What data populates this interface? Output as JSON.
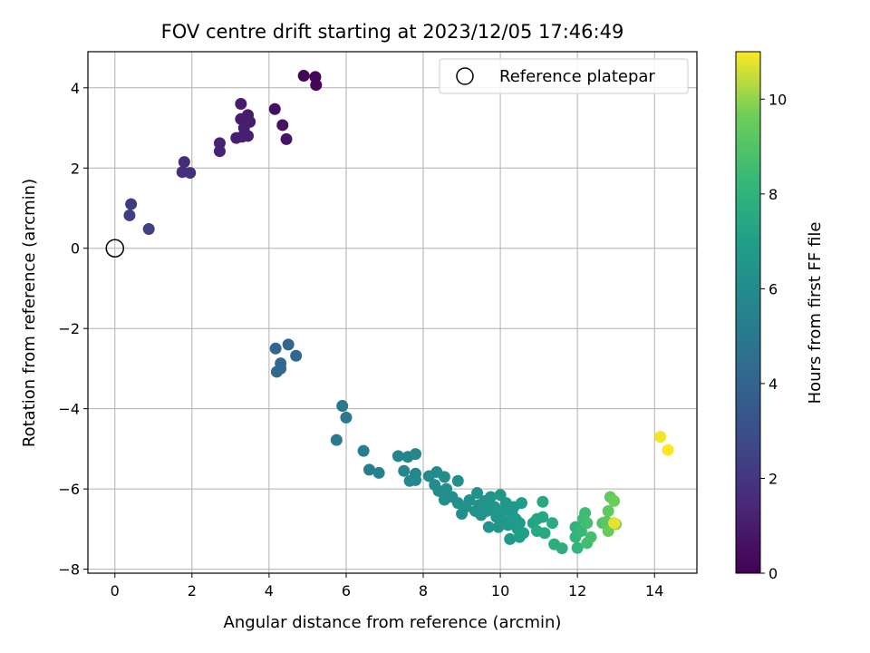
{
  "chart_data": {
    "type": "scatter",
    "title": "FOV centre drift starting at 2023/12/05 17:46:49",
    "xlabel": "Angular distance from reference (arcmin)",
    "ylabel": "Rotation from reference (arcmin)",
    "xlim": [
      -0.7,
      15.1
    ],
    "ylim": [
      -8.1,
      4.9
    ],
    "xticks": [
      0,
      2,
      4,
      6,
      8,
      10,
      12,
      14
    ],
    "yticks": [
      -8,
      -6,
      -4,
      -2,
      0,
      2,
      4
    ],
    "grid": true,
    "legend": {
      "placement": "top-right",
      "label": "Reference platepar"
    },
    "reference_point": {
      "x": 0,
      "y": 0
    },
    "colorbar": {
      "label": "Hours from first FF file",
      "range": [
        0,
        11
      ],
      "ticks": [
        0,
        2,
        4,
        6,
        8,
        10
      ],
      "colormap": "viridis"
    },
    "points": [
      {
        "x": 4.9,
        "y": 4.3,
        "h": 0.1
      },
      {
        "x": 5.2,
        "y": 4.27,
        "h": 0.15
      },
      {
        "x": 5.22,
        "y": 4.07,
        "h": 0.2
      },
      {
        "x": 4.15,
        "y": 3.47,
        "h": 0.5
      },
      {
        "x": 4.35,
        "y": 3.07,
        "h": 0.6
      },
      {
        "x": 4.45,
        "y": 2.72,
        "h": 0.7
      },
      {
        "x": 3.27,
        "y": 3.6,
        "h": 0.9
      },
      {
        "x": 3.45,
        "y": 3.32,
        "h": 0.95
      },
      {
        "x": 3.27,
        "y": 3.22,
        "h": 1.0
      },
      {
        "x": 3.5,
        "y": 3.15,
        "h": 1.0
      },
      {
        "x": 3.35,
        "y": 3.0,
        "h": 1.05
      },
      {
        "x": 3.15,
        "y": 2.75,
        "h": 1.1
      },
      {
        "x": 3.3,
        "y": 2.78,
        "h": 1.1
      },
      {
        "x": 3.45,
        "y": 2.8,
        "h": 1.15
      },
      {
        "x": 2.72,
        "y": 2.62,
        "h": 1.2
      },
      {
        "x": 2.72,
        "y": 2.42,
        "h": 1.25
      },
      {
        "x": 1.8,
        "y": 2.15,
        "h": 1.6
      },
      {
        "x": 1.75,
        "y": 1.9,
        "h": 1.65
      },
      {
        "x": 1.95,
        "y": 1.88,
        "h": 1.7
      },
      {
        "x": 0.42,
        "y": 1.1,
        "h": 2.2
      },
      {
        "x": 0.38,
        "y": 0.82,
        "h": 2.3
      },
      {
        "x": 0.88,
        "y": 0.48,
        "h": 2.4
      },
      {
        "x": 4.17,
        "y": -2.5,
        "h": 4.1
      },
      {
        "x": 4.5,
        "y": -2.4,
        "h": 4.15
      },
      {
        "x": 4.7,
        "y": -2.68,
        "h": 4.2
      },
      {
        "x": 4.3,
        "y": -2.87,
        "h": 4.25
      },
      {
        "x": 4.3,
        "y": -3.0,
        "h": 4.3
      },
      {
        "x": 4.2,
        "y": -3.08,
        "h": 4.35
      },
      {
        "x": 5.9,
        "y": -3.93,
        "h": 5.0
      },
      {
        "x": 6.0,
        "y": -4.22,
        "h": 5.05
      },
      {
        "x": 5.75,
        "y": -4.78,
        "h": 5.1
      },
      {
        "x": 6.45,
        "y": -5.05,
        "h": 5.25
      },
      {
        "x": 6.6,
        "y": -5.52,
        "h": 5.35
      },
      {
        "x": 6.85,
        "y": -5.6,
        "h": 5.4
      },
      {
        "x": 7.35,
        "y": -5.18,
        "h": 5.6
      },
      {
        "x": 7.6,
        "y": -5.2,
        "h": 5.65
      },
      {
        "x": 7.8,
        "y": -5.13,
        "h": 5.7
      },
      {
        "x": 7.5,
        "y": -5.55,
        "h": 5.7
      },
      {
        "x": 7.8,
        "y": -5.62,
        "h": 5.75
      },
      {
        "x": 7.65,
        "y": -5.8,
        "h": 5.8
      },
      {
        "x": 7.8,
        "y": -5.78,
        "h": 5.8
      },
      {
        "x": 8.15,
        "y": -5.68,
        "h": 5.9
      },
      {
        "x": 8.35,
        "y": -5.58,
        "h": 5.95
      },
      {
        "x": 8.3,
        "y": -5.9,
        "h": 6.0
      },
      {
        "x": 8.4,
        "y": -6.05,
        "h": 6.0
      },
      {
        "x": 8.55,
        "y": -5.7,
        "h": 6.05
      },
      {
        "x": 8.6,
        "y": -6.0,
        "h": 6.1
      },
      {
        "x": 8.55,
        "y": -6.27,
        "h": 6.1
      },
      {
        "x": 8.75,
        "y": -6.2,
        "h": 6.15
      },
      {
        "x": 8.9,
        "y": -5.8,
        "h": 6.15
      },
      {
        "x": 8.9,
        "y": -6.35,
        "h": 6.2
      },
      {
        "x": 9.0,
        "y": -6.62,
        "h": 6.2
      },
      {
        "x": 9.1,
        "y": -6.45,
        "h": 6.25
      },
      {
        "x": 9.2,
        "y": -6.28,
        "h": 6.25
      },
      {
        "x": 9.35,
        "y": -6.55,
        "h": 6.3
      },
      {
        "x": 9.4,
        "y": -6.1,
        "h": 6.3
      },
      {
        "x": 9.45,
        "y": -6.4,
        "h": 6.35
      },
      {
        "x": 9.5,
        "y": -6.65,
        "h": 6.35
      },
      {
        "x": 9.6,
        "y": -6.3,
        "h": 6.4
      },
      {
        "x": 9.65,
        "y": -6.55,
        "h": 6.4
      },
      {
        "x": 9.7,
        "y": -6.95,
        "h": 6.45
      },
      {
        "x": 9.75,
        "y": -6.2,
        "h": 6.45
      },
      {
        "x": 9.85,
        "y": -6.45,
        "h": 6.5
      },
      {
        "x": 9.9,
        "y": -6.7,
        "h": 6.5
      },
      {
        "x": 9.95,
        "y": -6.95,
        "h": 6.55
      },
      {
        "x": 10.0,
        "y": -6.15,
        "h": 6.55
      },
      {
        "x": 10.05,
        "y": -6.55,
        "h": 6.6
      },
      {
        "x": 10.1,
        "y": -6.8,
        "h": 6.6
      },
      {
        "x": 10.15,
        "y": -6.35,
        "h": 6.65
      },
      {
        "x": 10.2,
        "y": -6.9,
        "h": 6.65
      },
      {
        "x": 10.25,
        "y": -7.25,
        "h": 6.7
      },
      {
        "x": 10.3,
        "y": -6.6,
        "h": 6.7
      },
      {
        "x": 10.35,
        "y": -6.45,
        "h": 6.75
      },
      {
        "x": 10.4,
        "y": -6.75,
        "h": 6.75
      },
      {
        "x": 10.45,
        "y": -7.0,
        "h": 6.8
      },
      {
        "x": 10.5,
        "y": -6.85,
        "h": 6.85
      },
      {
        "x": 10.55,
        "y": -6.35,
        "h": 6.9
      },
      {
        "x": 10.6,
        "y": -7.1,
        "h": 6.95
      },
      {
        "x": 10.5,
        "y": -7.2,
        "h": 7.0
      },
      {
        "x": 10.85,
        "y": -6.85,
        "h": 7.2
      },
      {
        "x": 10.95,
        "y": -6.75,
        "h": 7.3
      },
      {
        "x": 11.1,
        "y": -6.7,
        "h": 7.35
      },
      {
        "x": 11.1,
        "y": -6.32,
        "h": 7.4
      },
      {
        "x": 10.95,
        "y": -7.05,
        "h": 7.45
      },
      {
        "x": 11.15,
        "y": -7.1,
        "h": 7.5
      },
      {
        "x": 11.35,
        "y": -6.85,
        "h": 7.6
      },
      {
        "x": 11.4,
        "y": -7.38,
        "h": 7.7
      },
      {
        "x": 11.6,
        "y": -7.48,
        "h": 7.8
      },
      {
        "x": 11.95,
        "y": -6.95,
        "h": 8.0
      },
      {
        "x": 11.95,
        "y": -7.2,
        "h": 8.1
      },
      {
        "x": 12.0,
        "y": -7.47,
        "h": 8.2
      },
      {
        "x": 12.1,
        "y": -7.05,
        "h": 8.3
      },
      {
        "x": 12.15,
        "y": -6.75,
        "h": 8.4
      },
      {
        "x": 12.2,
        "y": -6.6,
        "h": 8.5
      },
      {
        "x": 12.25,
        "y": -6.85,
        "h": 8.6
      },
      {
        "x": 12.25,
        "y": -7.35,
        "h": 8.65
      },
      {
        "x": 12.35,
        "y": -7.2,
        "h": 8.7
      },
      {
        "x": 12.65,
        "y": -6.85,
        "h": 9.0
      },
      {
        "x": 12.75,
        "y": -6.82,
        "h": 9.2
      },
      {
        "x": 12.8,
        "y": -6.55,
        "h": 9.3
      },
      {
        "x": 12.85,
        "y": -6.2,
        "h": 9.4
      },
      {
        "x": 12.8,
        "y": -7.05,
        "h": 9.5
      },
      {
        "x": 12.95,
        "y": -6.3,
        "h": 9.6
      },
      {
        "x": 12.95,
        "y": -6.85,
        "h": 9.8
      },
      {
        "x": 13.0,
        "y": -6.88,
        "h": 10.0
      },
      {
        "x": 12.95,
        "y": -6.85,
        "h": 10.8
      },
      {
        "x": 14.15,
        "y": -4.7,
        "h": 10.9
      },
      {
        "x": 14.35,
        "y": -5.03,
        "h": 11.0
      }
    ]
  }
}
